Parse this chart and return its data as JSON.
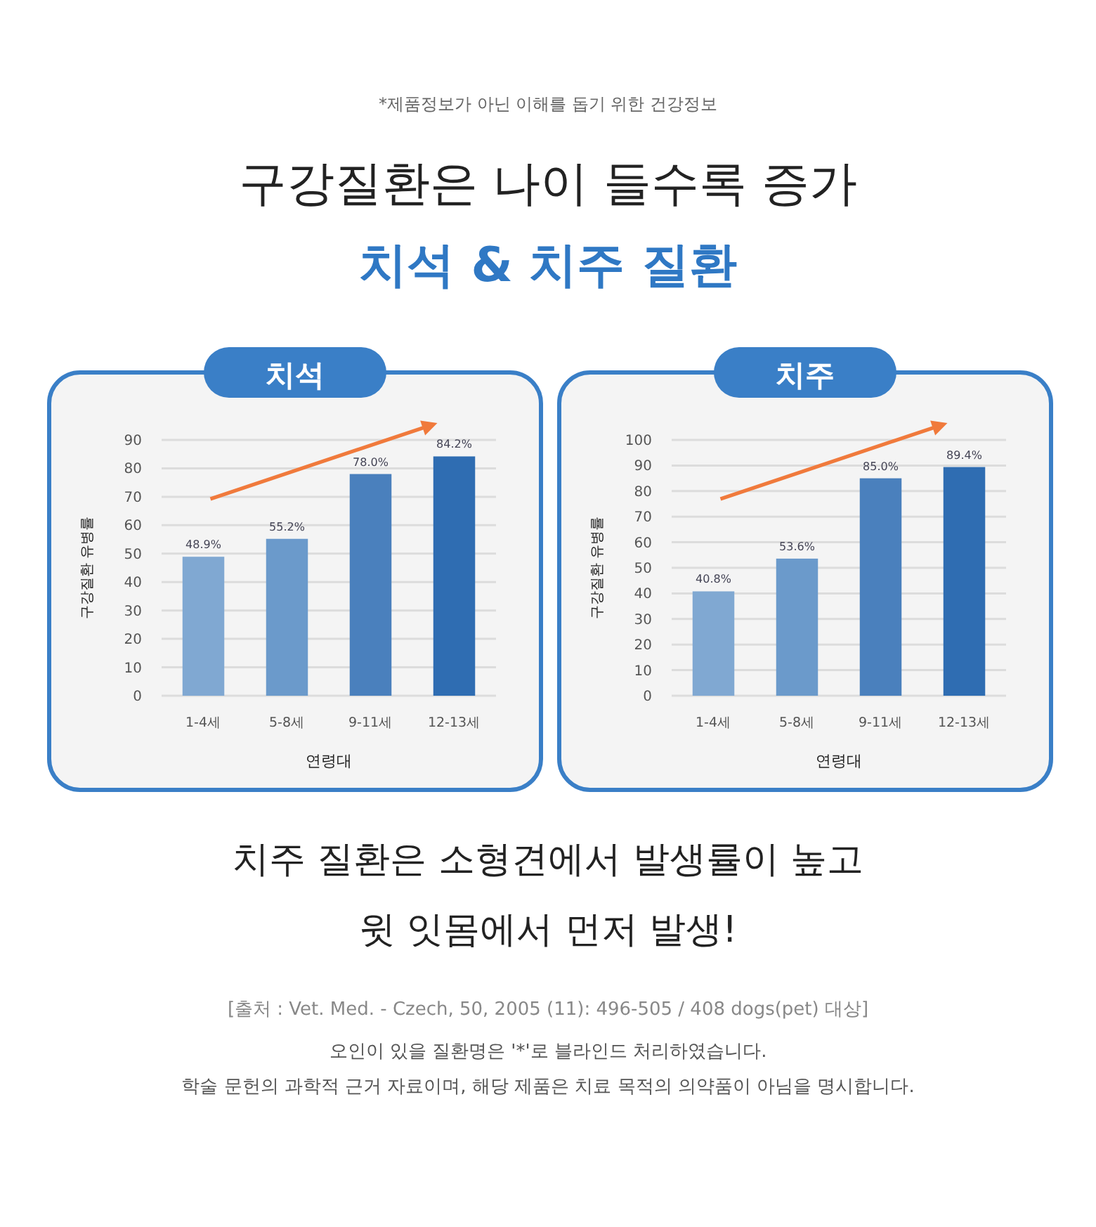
{
  "chart_data": [
    {
      "type": "other",
      "annotations": [
        "*제품정보가 아닌 이해를 돕기 위한 건강정보"
      ],
      "title": "구강질환은 나이 들수록 증가",
      "subtitle": "치석 & 치주 질환"
    },
    {
      "type": "bar",
      "title": "치석",
      "xlabel": "연령대",
      "ylabel": "구강질환 유병률",
      "categories": [
        "1-4세",
        "5-8세",
        "9-11세",
        "12-13세"
      ],
      "values": [
        48.9,
        55.2,
        78.0,
        84.2
      ],
      "value_labels": [
        "48.9%",
        "55.2%",
        "78.0%",
        "84.2%"
      ],
      "colors": [
        "#80a8d2",
        "#6b9acb",
        "#4a80bd",
        "#2f6db2"
      ],
      "ylim": [
        0,
        90
      ],
      "yticks": [
        0,
        10,
        20,
        30,
        40,
        50,
        60,
        70,
        80,
        90
      ],
      "grid": "y"
    },
    {
      "type": "bar",
      "title": "치주",
      "xlabel": "연령대",
      "ylabel": "구강질환 유병률",
      "categories": [
        "1-4세",
        "5-8세",
        "9-11세",
        "12-13세"
      ],
      "values": [
        40.8,
        53.6,
        85.0,
        89.4
      ],
      "value_labels": [
        "40.8%",
        "53.6%",
        "85.0%",
        "89.4%"
      ],
      "colors": [
        "#80a8d2",
        "#6b9acb",
        "#4a80bd",
        "#2f6db2"
      ],
      "ylim": [
        0,
        100
      ],
      "yticks": [
        0,
        10,
        20,
        30,
        40,
        50,
        60,
        70,
        80,
        90,
        100
      ],
      "grid": "y"
    },
    {
      "type": "other",
      "annotations": [
        "치주 질환은 소형견에서 발생률이 높고",
        "윗 잇몸에서 먼저 발생!",
        "[출처 : Vet. Med. - Czech, 50, 2005 (11): 496-505 / 408 dogs(pet) 대상]",
        "오인이 있을 질환명은 '*'로 블라인드 처리하였습니다.",
        "학술 문헌의 과학적 근거 자료이며, 해당 제품은 치료 목적의 의약품이 아님을 명시합니다."
      ]
    }
  ]
}
